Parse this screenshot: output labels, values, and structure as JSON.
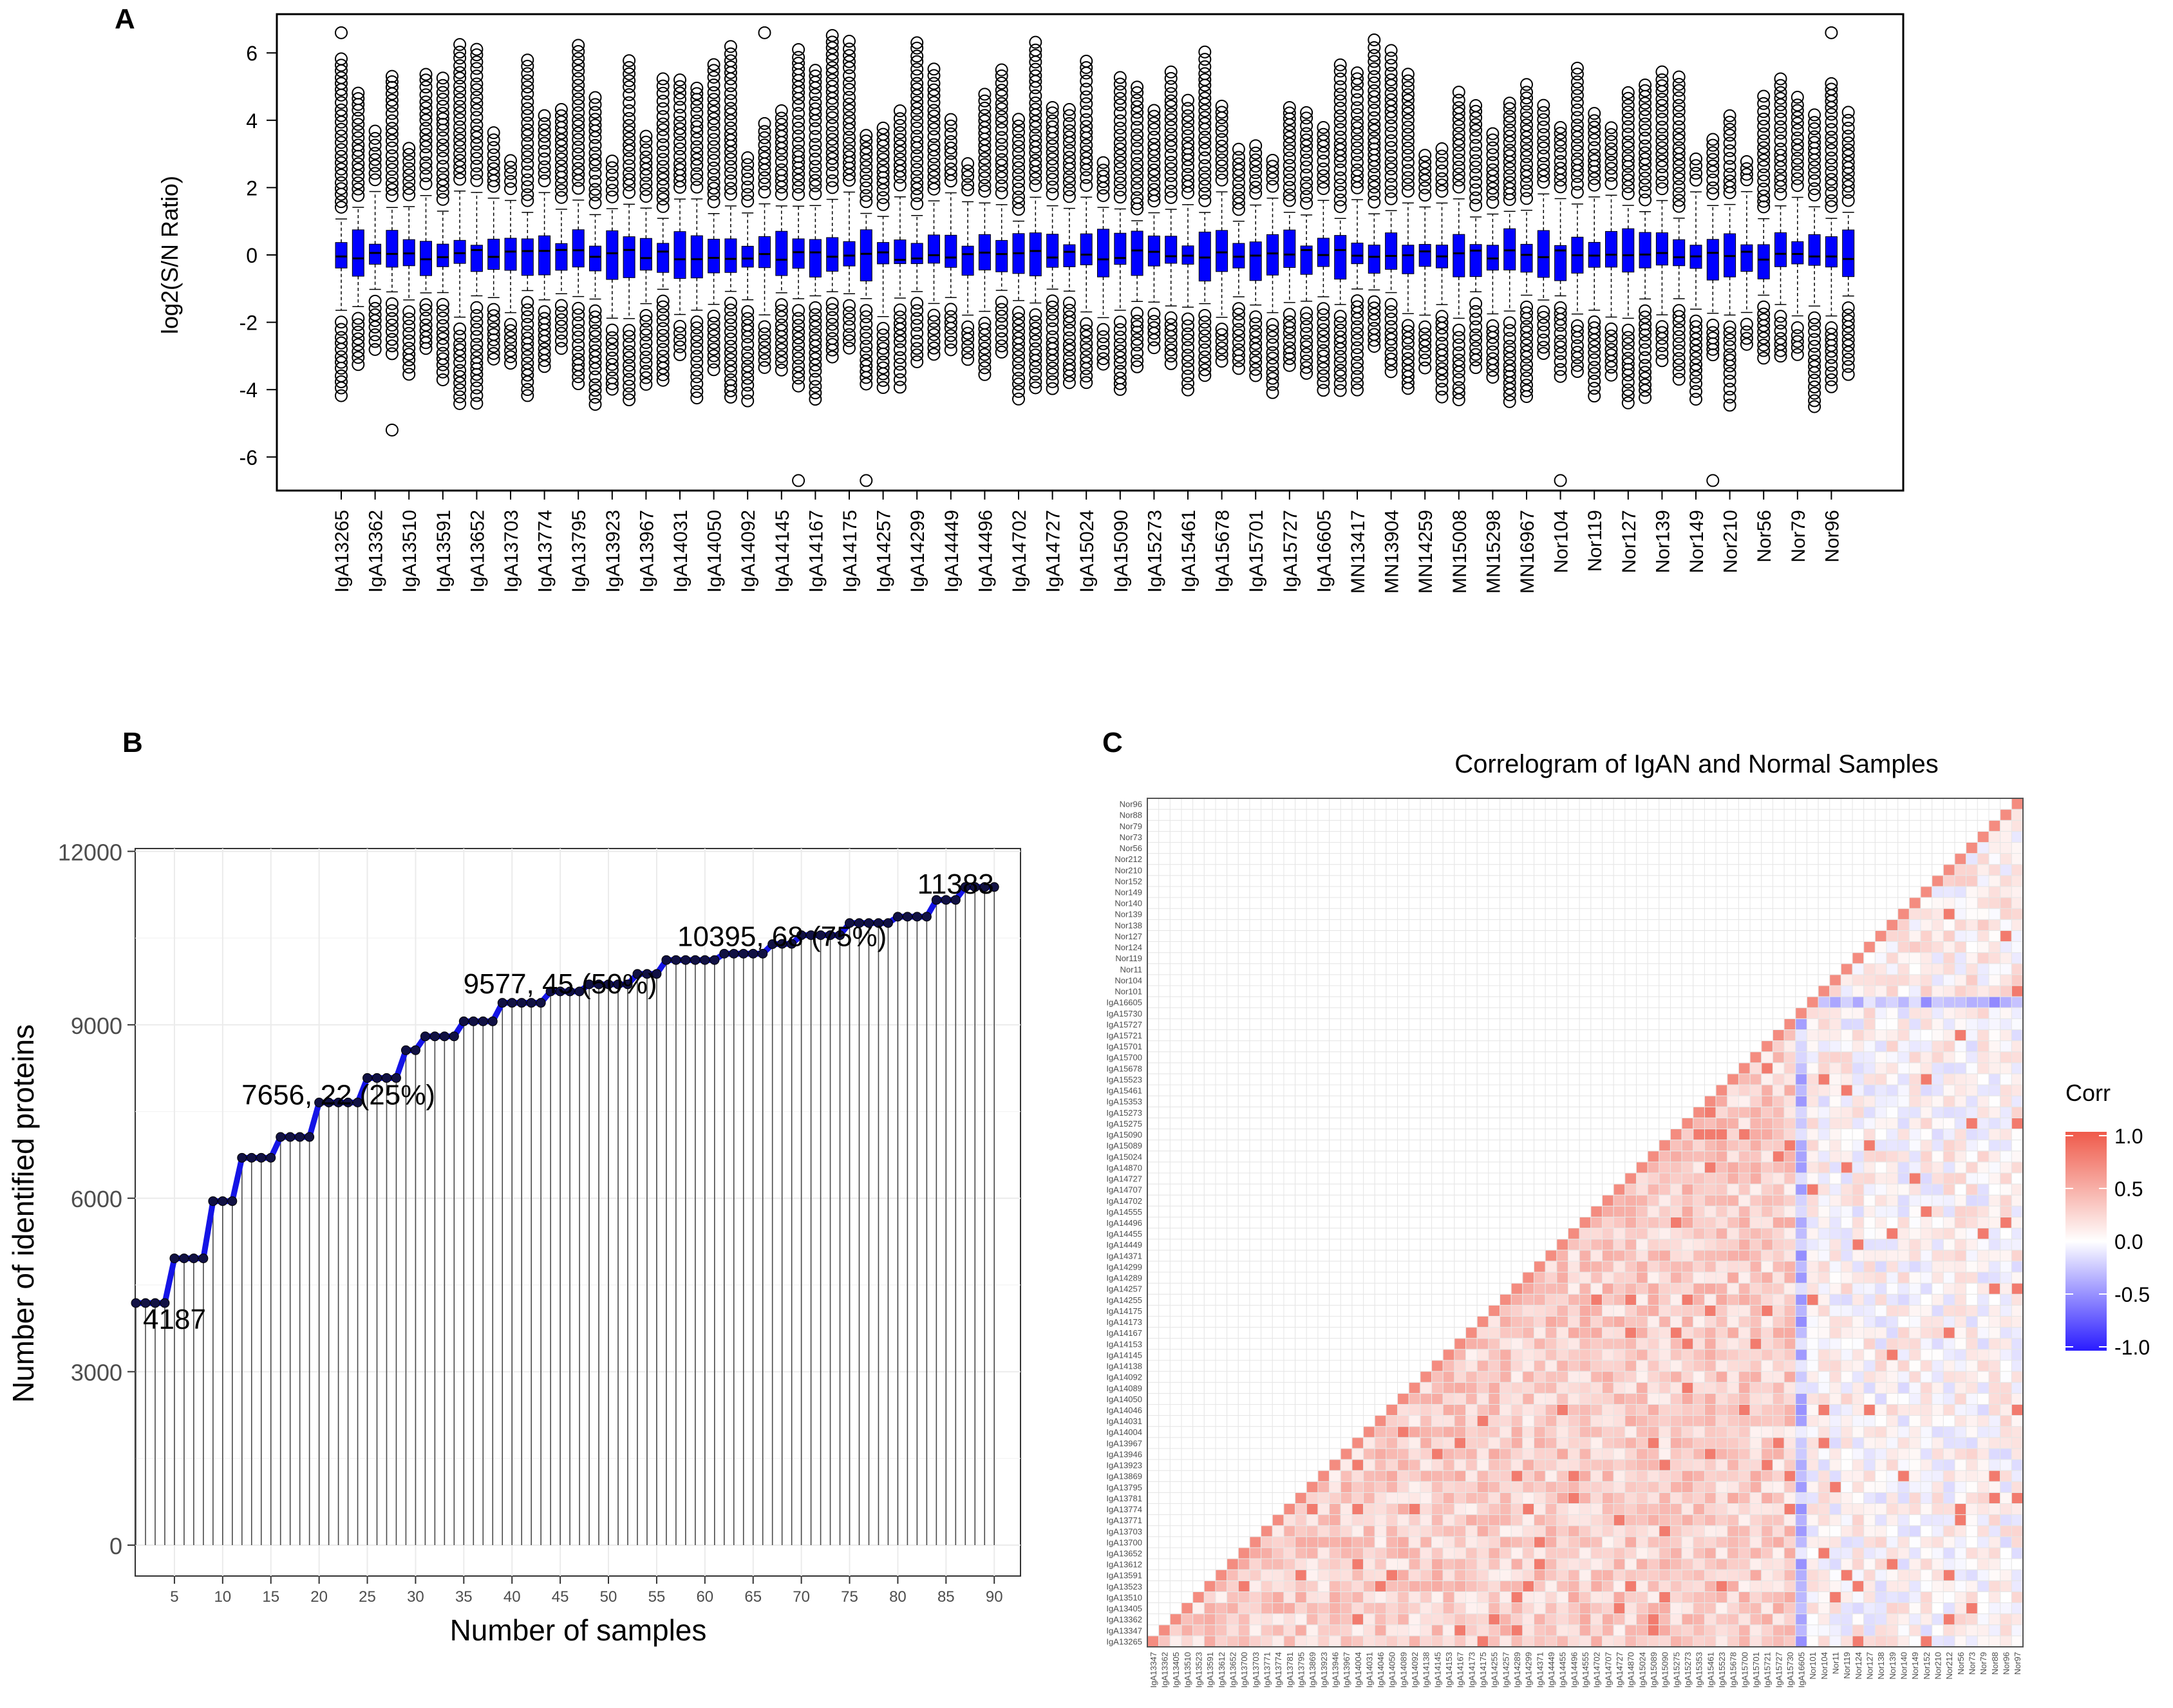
{
  "panels": {
    "a": "A",
    "b": "B",
    "c": "C"
  },
  "colors": {
    "box_fill": "#0000ff",
    "line_blue": "#1414e6",
    "corr_high": "#ef5a4a",
    "corr_mid": "#ffffff",
    "corr_low": "#2a1cff",
    "grid": "#e8e8e8"
  },
  "chart_data": [
    {
      "id": "A",
      "type": "boxplot",
      "title": "",
      "ylabel": "log2(S/N Ratio)",
      "xlabel": "",
      "ylim": [
        -7,
        7
      ],
      "yticks": [
        -6,
        -4,
        -2,
        0,
        2,
        4,
        6
      ],
      "categories_labeled": [
        "IgA13265",
        "IgA13362",
        "IgA13510",
        "IgA13591",
        "IgA13652",
        "IgA13703",
        "IgA13774",
        "IgA13795",
        "IgA13923",
        "IgA13967",
        "IgA14031",
        "IgA14050",
        "IgA14092",
        "IgA14145",
        "IgA14167",
        "IgA14175",
        "IgA14257",
        "IgA14299",
        "IgA14449",
        "IgA14496",
        "IgA14702",
        "IgA14727",
        "IgA15024",
        "IgA15090",
        "IgA15273",
        "IgA15461",
        "IgA15678",
        "IgA15701",
        "IgA15727",
        "IgA16605",
        "MN13417",
        "MN13904",
        "MN14259",
        "MN15008",
        "MN15298",
        "MN16967",
        "Nor104",
        "Nor119",
        "Nor127",
        "Nor139",
        "Nor149",
        "Nor210",
        "Nor56",
        "Nor79",
        "Nor96"
      ],
      "n_boxes": 90,
      "typical_box": {
        "median": 0.0,
        "q1": -0.6,
        "q3": 0.6,
        "whisker_low": -1.2,
        "whisker_high": 1.2
      },
      "outlier_range": [
        -6.6,
        6.6
      ]
    },
    {
      "id": "B",
      "type": "line",
      "xlabel": "Number of samples",
      "ylabel": "Number of identified proteins",
      "xlim": [
        1,
        90
      ],
      "ylim": [
        0,
        12000
      ],
      "xticks": [
        5,
        10,
        15,
        20,
        25,
        30,
        35,
        40,
        45,
        50,
        55,
        60,
        65,
        70,
        75,
        80,
        85,
        90
      ],
      "yticks": [
        0,
        3000,
        6000,
        9000,
        12000
      ],
      "steps": [
        [
          1,
          4187
        ],
        [
          5,
          4960
        ],
        [
          9,
          5950
        ],
        [
          12,
          6700
        ],
        [
          16,
          7060
        ],
        [
          20,
          7656
        ],
        [
          25,
          8080
        ],
        [
          29,
          8560
        ],
        [
          31,
          8800
        ],
        [
          35,
          9060
        ],
        [
          39,
          9380
        ],
        [
          44,
          9577
        ],
        [
          48,
          9700
        ],
        [
          53,
          9880
        ],
        [
          56,
          10120
        ],
        [
          62,
          10230
        ],
        [
          67,
          10395
        ],
        [
          68,
          10400
        ],
        [
          70,
          10550
        ],
        [
          75,
          10760
        ],
        [
          80,
          10870
        ],
        [
          84,
          11160
        ],
        [
          87,
          11383
        ]
      ],
      "annotations": [
        "4187",
        "7656, 22 (25%)",
        "9577, 45 (50%)",
        "10395, 68 (75%)",
        "11383"
      ],
      "annotation_points": [
        [
          1,
          4187
        ],
        [
          22,
          7656
        ],
        [
          45,
          9577
        ],
        [
          68,
          10395
        ],
        [
          90,
          11383
        ]
      ]
    },
    {
      "id": "C",
      "type": "heatmap",
      "title": "Correlogram of IgAN and Normal Samples",
      "legend_title": "Corr",
      "legend_ticks": [
        "1.0",
        "0.5",
        "0.0",
        "-0.5",
        "-1.0"
      ],
      "range": [
        -1,
        1
      ],
      "samples": [
        "IgA13265",
        "IgA13347",
        "IgA13362",
        "IgA13405",
        "IgA13510",
        "IgA13523",
        "IgA13591",
        "IgA13612",
        "IgA13652",
        "IgA13700",
        "IgA13703",
        "IgA13771",
        "IgA13774",
        "IgA13781",
        "IgA13795",
        "IgA13869",
        "IgA13923",
        "IgA13946",
        "IgA13967",
        "IgA14004",
        "IgA14031",
        "IgA14046",
        "IgA14050",
        "IgA14089",
        "IgA14092",
        "IgA14138",
        "IgA14145",
        "IgA14153",
        "IgA14167",
        "IgA14173",
        "IgA14175",
        "IgA14255",
        "IgA14257",
        "IgA14289",
        "IgA14299",
        "IgA14371",
        "IgA14449",
        "IgA14455",
        "IgA14496",
        "IgA14555",
        "IgA14702",
        "IgA14707",
        "IgA14727",
        "IgA14870",
        "IgA15024",
        "IgA15089",
        "IgA15090",
        "IgA15275",
        "IgA15273",
        "IgA15353",
        "IgA15461",
        "IgA15523",
        "IgA15678",
        "IgA15700",
        "IgA15701",
        "IgA15721",
        "IgA15727",
        "IgA15730",
        "IgA16605",
        "Nor101",
        "Nor104",
        "Nor11",
        "Nor119",
        "Nor124",
        "Nor127",
        "Nor138",
        "Nor139",
        "Nor140",
        "Nor149",
        "Nor152",
        "Nor210",
        "Nor212",
        "Nor56",
        "Nor73",
        "Nor79",
        "Nor88",
        "Nor96"
      ],
      "x_labels": [
        "IgA13347",
        "IgA13362",
        "IgA13405",
        "IgA13510",
        "IgA13523",
        "IgA13591",
        "IgA13612",
        "IgA13652",
        "IgA13700",
        "IgA13703",
        "IgA13771",
        "IgA13774",
        "IgA13781",
        "IgA13795",
        "IgA13869",
        "IgA13923",
        "IgA13946",
        "IgA13967",
        "IgA14004",
        "IgA14031",
        "IgA14046",
        "IgA14050",
        "IgA14089",
        "IgA14092",
        "IgA14138",
        "IgA14145",
        "IgA14153",
        "IgA14167",
        "IgA14173",
        "IgA14175",
        "IgA14255",
        "IgA14257",
        "IgA14289",
        "IgA14299",
        "IgA14371",
        "IgA14449",
        "IgA14455",
        "IgA14496",
        "IgA14555",
        "IgA14702",
        "IgA14707",
        "IgA14727",
        "IgA14870",
        "IgA15024",
        "IgA15089",
        "IgA15090",
        "IgA15275",
        "IgA15273",
        "IgA15353",
        "IgA15461",
        "IgA15523",
        "IgA15678",
        "IgA15700",
        "IgA15701",
        "IgA15721",
        "IgA15727",
        "IgA15730",
        "IgA16605",
        "Nor101",
        "Nor104",
        "Nor11",
        "Nor119",
        "Nor124",
        "Nor127",
        "Nor138",
        "Nor139",
        "Nor140",
        "Nor149",
        "Nor152",
        "Nor210",
        "Nor212",
        "Nor56",
        "Nor73",
        "Nor79",
        "Nor88",
        "Nor96",
        "Nor97"
      ],
      "typical_corr": {
        "iga_iga": 0.3,
        "iga_nor": 0.05,
        "nor_nor": 0.1,
        "igA16605_any": -0.3
      }
    }
  ]
}
